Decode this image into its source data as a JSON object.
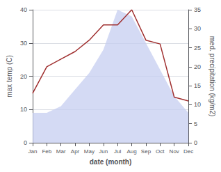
{
  "chart_data": {
    "type": "line",
    "categories": [
      "Jan",
      "Feb",
      "Mar",
      "Apr",
      "May",
      "Jun",
      "Jul",
      "Aug",
      "Sep",
      "Oct",
      "Nov",
      "Dec"
    ],
    "series": [
      {
        "type": "area",
        "color": "#c5cdf0",
        "values": [
          9,
          9,
          11,
          16,
          21,
          28,
          40,
          38,
          30,
          22,
          14,
          9
        ]
      },
      {
        "type": "line",
        "color": "#a03030",
        "axis": "y2",
        "values": [
          13,
          20,
          22,
          24,
          27,
          31,
          31,
          35,
          27,
          26,
          12,
          11
        ]
      }
    ],
    "xlabel": "date (month)",
    "ylabel": "max temp (C)",
    "y2label": "med. precipitation (kg/m2)",
    "ylim": [
      0,
      40
    ],
    "yticks": [
      0,
      10,
      20,
      30,
      40
    ],
    "y2lim": [
      0,
      35
    ],
    "y2ticks": [
      0,
      5,
      10,
      15,
      20,
      25,
      30,
      35
    ],
    "grid": true
  }
}
